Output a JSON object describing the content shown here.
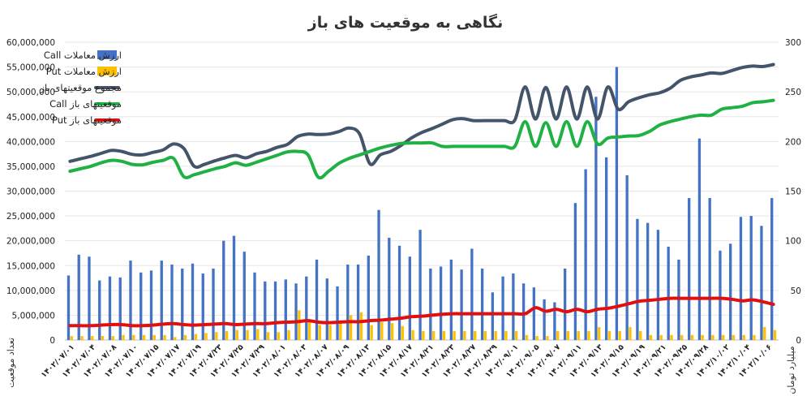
{
  "chart_data": {
    "type": "bar",
    "title": "نگاهی به موقعیت های باز",
    "ylabel_left": "تعداد موقعیت",
    "ylabel_right": "میلیارد تومان",
    "yticks_left": [
      "0",
      "5,000,000",
      "10,000,000",
      "15,000,000",
      "20,000,000",
      "25,000,000",
      "30,000,000",
      "35,000,000",
      "40,000,000",
      "45,000,000",
      "50,000,000",
      "55,000,000",
      "60,000,000"
    ],
    "yticks_right": [
      "0",
      "50",
      "100",
      "150",
      "200",
      "250",
      "300"
    ],
    "ylim_left": [
      0,
      60000000
    ],
    "ylim_right": [
      0,
      300
    ],
    "x_labels": [
      "۱۴۰۲/۰۷/۰۱",
      "۱۴۰۲/۰۷/۰۴",
      "۱۴۰۲/۰۷/۰۸",
      "۱۴۰۲/۰۷/۱۰",
      "۱۴۰۲/۰۷/۱۵",
      "۱۴۰۲/۰۷/۱۷",
      "۱۴۰۲/۰۷/۱۹",
      "۱۴۰۲/۰۷/۲۳",
      "۱۴۰۲/۰۷/۲۵",
      "۱۴۰۲/۰۷/۲۹",
      "۱۴۰۲/۰۸/۰۱",
      "۱۴۰۲/۰۸/۰۳",
      "۱۴۰۲/۰۸/۰۷",
      "۱۴۰۲/۰۸/۰۹",
      "۱۴۰۲/۰۸/۱۳",
      "۱۴۰۲/۰۸/۱۵",
      "۱۴۰۲/۰۸/۱۷",
      "۱۴۰۲/۰۸/۲۱",
      "۱۴۰۲/۰۸/۲۳",
      "۱۴۰۲/۰۸/۲۷",
      "۱۴۰۲/۰۸/۲۹",
      "۱۴۰۲/۰۹/۰۱",
      "۱۴۰۲/۰۹/۰۵",
      "۱۴۰۲/۰۹/۰۷",
      "۱۴۰۲/۰۹/۱۱",
      "۱۴۰۲/۰۹/۱۳",
      "۱۴۰۲/۰۹/۱۵",
      "۱۴۰۲/۰۹/۱۹",
      "۱۴۰۲/۰۹/۲۱",
      "۱۴۰۲/۰۹/۲۵",
      "۱۴۰۲/۰۹/۲۸",
      "۱۴۰۲/۱۰/۰۲",
      "۱۴۰۲/۱۰/۰۴",
      "۱۴۰۲/۱۰/۰۶"
    ],
    "legend": [
      {
        "name": "ارزش معاملات Call",
        "kind": "bar",
        "color": "#4472c4"
      },
      {
        "name": "ارزش معاملات Put",
        "kind": "bar",
        "color": "#ffc000"
      },
      {
        "name": "مجموع موقعیتهای باز",
        "kind": "line",
        "color": "#44546a"
      },
      {
        "name": "موقعیتهای باز Call",
        "kind": "line",
        "color": "#1fb144"
      },
      {
        "name": "موقعیتهای باز Put",
        "kind": "line",
        "color": "#e01010"
      }
    ],
    "bars_call_billion_toman": [
      65,
      86,
      84,
      60,
      64,
      63,
      80,
      68,
      70,
      80,
      76,
      72,
      77,
      67,
      72,
      100,
      105,
      89,
      68,
      59,
      59,
      61,
      57,
      64,
      81,
      62,
      54,
      76,
      76,
      85,
      131,
      103,
      95,
      84,
      111,
      72,
      74,
      81,
      71,
      92,
      72,
      48,
      64,
      67,
      57,
      53,
      41,
      38,
      72,
      138,
      172,
      245,
      184,
      275,
      166,
      122,
      118,
      111,
      94,
      81,
      143,
      203,
      143,
      90,
      97,
      124,
      125,
      115,
      143
    ],
    "bars_put_billion_toman": [
      4,
      4,
      4,
      4,
      4,
      5,
      5,
      5,
      5,
      5,
      3,
      5,
      6,
      7,
      8,
      9,
      10,
      10,
      11,
      8,
      8,
      10,
      30,
      20,
      15,
      15,
      18,
      25,
      28,
      15,
      18,
      17,
      14,
      10,
      9,
      9,
      9,
      9,
      9,
      9,
      9,
      9,
      9,
      9,
      5,
      4,
      4,
      9,
      9,
      9,
      9,
      13,
      9,
      9,
      13,
      9,
      5,
      5,
      5,
      5,
      5,
      5,
      5,
      5,
      5,
      5,
      5,
      13,
      10
    ],
    "line_total_positions": [
      36000000,
      36500000,
      37000000,
      37600000,
      38200000,
      38000000,
      37400000,
      37300000,
      37800000,
      38300000,
      39500000,
      38600000,
      35000000,
      35400000,
      36100000,
      36700000,
      37200000,
      36700000,
      37500000,
      38000000,
      38800000,
      39400000,
      41000000,
      41500000,
      41400000,
      41500000,
      42000000,
      42700000,
      41500000,
      35500000,
      37300000,
      38000000,
      39200000,
      40700000,
      41800000,
      42600000,
      43500000,
      44400000,
      44600000,
      44200000,
      44200000,
      44200000,
      44200000,
      44300000,
      51000000,
      44500000,
      50900000,
      44500000,
      51000000,
      44500000,
      51000000,
      44500000,
      51000000,
      46500000,
      48000000,
      48800000,
      49400000,
      49800000,
      50700000,
      52300000,
      53000000,
      53400000,
      53800000,
      53700000,
      54300000,
      54900000,
      55200000,
      55100000,
      55500000
    ],
    "line_call_positions": [
      34000000,
      34500000,
      35000000,
      35700000,
      36200000,
      36000000,
      35400000,
      35300000,
      35800000,
      36200000,
      36600000,
      32900000,
      33300000,
      33900000,
      34500000,
      35000000,
      35700000,
      35200000,
      35800000,
      36500000,
      37200000,
      37900000,
      38000000,
      37300000,
      32800000,
      34000000,
      35600000,
      36600000,
      37300000,
      38000000,
      38700000,
      39200000,
      39600000,
      39700000,
      39700000,
      39700000,
      39000000,
      39000000,
      39000000,
      39000000,
      39000000,
      39000000,
      39000000,
      39000000,
      44000000,
      39000000,
      43800000,
      39000000,
      44000000,
      39000000,
      44000000,
      39500000,
      40700000,
      40900000,
      41100000,
      41200000,
      42000000,
      43300000,
      44000000,
      44500000,
      45000000,
      45300000,
      45300000,
      46500000,
      46800000,
      47100000,
      47800000,
      48000000,
      48300000
    ],
    "line_put_positions": [
      2900000,
      2900000,
      2900000,
      3000000,
      3100000,
      3100000,
      2900000,
      2900000,
      3000000,
      3200000,
      3300000,
      3100000,
      3000000,
      3100000,
      3200000,
      3300000,
      3100000,
      3200000,
      3300000,
      3300000,
      3500000,
      3600000,
      3700000,
      3900000,
      3600000,
      3500000,
      3600000,
      3700000,
      3700000,
      3900000,
      4000000,
      4200000,
      4400000,
      4700000,
      4800000,
      5000000,
      5200000,
      5300000,
      5300000,
      5300000,
      5300000,
      5300000,
      5300000,
      5300000,
      5300000,
      6500000,
      5800000,
      6200000,
      5700000,
      6200000,
      5700000,
      6200000,
      6400000,
      6800000,
      7300000,
      7800000,
      8000000,
      8200000,
      8400000,
      8400000,
      8400000,
      8400000,
      8400000,
      8400000,
      8200000,
      7900000,
      8100000,
      7700000,
      7200000
    ]
  }
}
